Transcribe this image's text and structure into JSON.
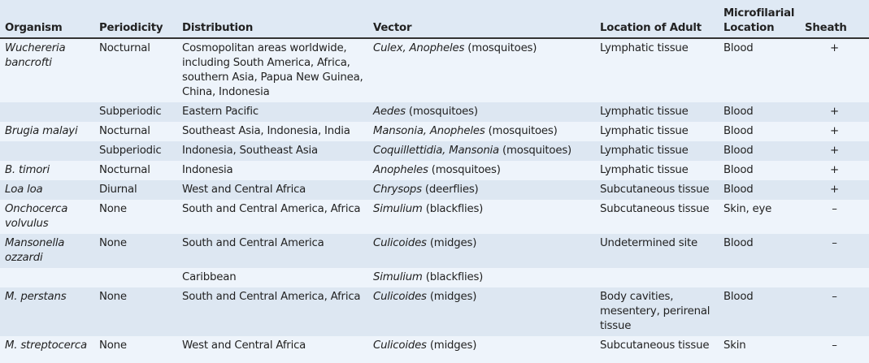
{
  "columns": [
    "Organism",
    "Periodicity",
    "Distribution",
    "Vector",
    "Location of Adult",
    "Microfilarial Location",
    "Sheath"
  ],
  "rows": [
    {
      "organism": "Wuchereria bancrofti",
      "periodicity": "Nocturnal",
      "distribution": "Cosmopolitan areas worldwide, including South America, Africa, southern Asia, Papua New Guinea, China, Indonesia",
      "vector_genus": "Culex, Anopheles",
      "vector_rest": " (mosquitoes)",
      "adult": "Lymphatic tissue",
      "micro": "Blood",
      "sheath": "+"
    },
    {
      "organism": "",
      "periodicity": "Subperiodic",
      "distribution": "Eastern Pacific",
      "vector_genus": "Aedes",
      "vector_rest": " (mosquitoes)",
      "adult": "Lymphatic tissue",
      "micro": "Blood",
      "sheath": "+"
    },
    {
      "organism": "Brugia malayi",
      "periodicity": "Nocturnal",
      "distribution": "Southeast Asia, Indonesia, India",
      "vector_genus": "Mansonia, Anopheles",
      "vector_rest": " (mosquitoes)",
      "adult": "Lymphatic tissue",
      "micro": "Blood",
      "sheath": "+"
    },
    {
      "organism": "",
      "periodicity": "Subperiodic",
      "distribution": "Indonesia, Southeast Asia",
      "vector_genus": "Coquillettidia, Mansonia",
      "vector_rest": " (mosquitoes)",
      "adult": "Lymphatic tissue",
      "micro": "Blood",
      "sheath": "+"
    },
    {
      "organism": "B. timori",
      "periodicity": "Nocturnal",
      "distribution": "Indonesia",
      "vector_genus": "Anopheles",
      "vector_rest": " (mosquitoes)",
      "adult": "Lymphatic tissue",
      "micro": "Blood",
      "sheath": "+"
    },
    {
      "organism": "Loa loa",
      "periodicity": "Diurnal",
      "distribution": "West and Central Africa",
      "vector_genus": "Chrysops",
      "vector_rest": " (deerflies)",
      "adult": "Subcutaneous tissue",
      "micro": "Blood",
      "sheath": "+"
    },
    {
      "organism": "Onchocerca volvulus",
      "periodicity": "None",
      "distribution": "South and Central America, Africa",
      "vector_genus": "Simulium",
      "vector_rest": " (blackflies)",
      "adult": "Subcutaneous tissue",
      "micro": "Skin, eye",
      "sheath": "–"
    },
    {
      "organism": "Mansonella ozzardi",
      "periodicity": "None",
      "distribution": "South and Central America",
      "vector_genus": "Culicoides",
      "vector_rest": " (midges)",
      "adult": "Undetermined site",
      "micro": "Blood",
      "sheath": "–"
    },
    {
      "organism": "",
      "periodicity": "",
      "distribution": "Caribbean",
      "vector_genus": "Simulium",
      "vector_rest": " (blackflies)",
      "adult": "",
      "micro": "",
      "sheath": ""
    },
    {
      "organism": "M. perstans",
      "periodicity": "None",
      "distribution": "South and Central America, Africa",
      "vector_genus": "Culicoides",
      "vector_rest": " (midges)",
      "adult": "Body cavities, mesentery, perirenal tissue",
      "micro": "Blood",
      "sheath": "–"
    },
    {
      "organism": "M. streptocerca",
      "periodicity": "None",
      "distribution": "West and Central Africa",
      "vector_genus": "Culicoides",
      "vector_rest": " (midges)",
      "adult": "Subcutaneous tissue",
      "micro": "Skin",
      "sheath": "–"
    }
  ]
}
